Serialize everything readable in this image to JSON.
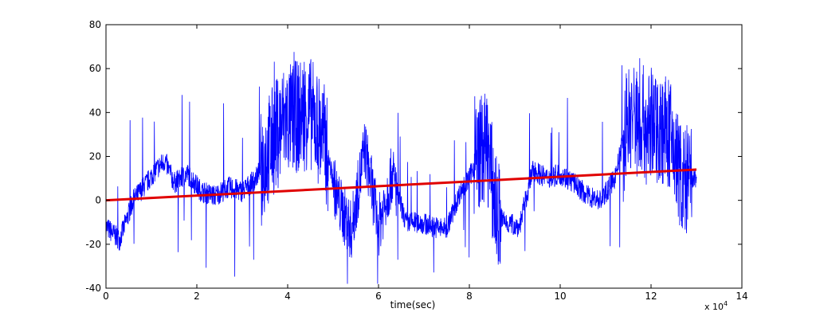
{
  "chart_data": {
    "type": "line",
    "xlabel": "time(sec)",
    "ylabel": "",
    "x_exponent_label": "x 10",
    "x_exponent_power": "4",
    "xlim": [
      0,
      14
    ],
    "ylim": [
      -40,
      80
    ],
    "x_ticks": [
      "0",
      "2",
      "4",
      "6",
      "8",
      "10",
      "12",
      "14"
    ],
    "y_ticks": [
      "-40",
      "-20",
      "0",
      "20",
      "40",
      "60",
      "80"
    ],
    "grid": false,
    "colors": {
      "signal": "#0000ff",
      "trend": "#e00000",
      "axes": "#000000"
    },
    "series": [
      {
        "role": "signal",
        "x": [
          0,
          0.3,
          0.6,
          0.9,
          1.1,
          1.3,
          1.5,
          1.8,
          2.1,
          2.4,
          2.7,
          3.0,
          3.3,
          3.6,
          3.9,
          4.2,
          4.5,
          4.8,
          5.1,
          5.4,
          5.7,
          6.0,
          6.3,
          6.6,
          6.9,
          7.2,
          7.5,
          7.8,
          8.0,
          8.2,
          8.4,
          8.6,
          8.8,
          9.1,
          9.4,
          9.7,
          10.0,
          10.3,
          10.6,
          10.9,
          11.2,
          11.5,
          11.8,
          12.1,
          12.4,
          12.7,
          13.0
        ],
        "y": [
          -12,
          -18,
          0,
          8,
          14,
          18,
          8,
          12,
          4,
          2,
          6,
          4,
          10,
          24,
          36,
          38,
          40,
          28,
          0,
          -14,
          24,
          -12,
          12,
          -10,
          -10,
          -12,
          -13,
          4,
          10,
          22,
          24,
          -6,
          -10,
          -12,
          14,
          10,
          12,
          8,
          2,
          0,
          10,
          38,
          36,
          34,
          30,
          8,
          10
        ]
      },
      {
        "role": "trend",
        "x": [
          0,
          13.0
        ],
        "y": [
          0,
          14
        ]
      }
    ]
  }
}
